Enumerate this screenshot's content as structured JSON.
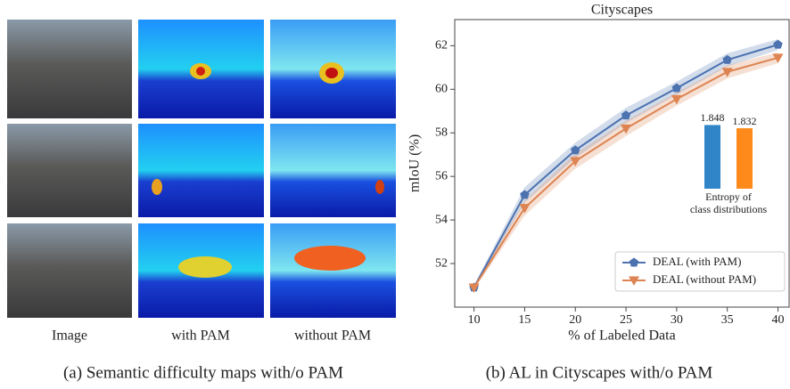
{
  "figure_a": {
    "column_labels": [
      "Image",
      "with PAM",
      "without PAM"
    ],
    "caption": "(a) Semantic difficulty maps with/o PAM"
  },
  "figure_b": {
    "caption": "(b) AL in Cityscapes with/o PAM"
  },
  "chart_data": [
    {
      "type": "line",
      "title": "Cityscapes",
      "x_label": "% of Labeled Data",
      "y_label": "mIoU (%)",
      "x": [
        10,
        15,
        20,
        25,
        30,
        35,
        40
      ],
      "series": [
        {
          "name": "DEAL (with PAM)",
          "color": "#4c72b0",
          "marker": "pentagon",
          "values": [
            50.9,
            55.15,
            57.2,
            58.8,
            60.05,
            61.35,
            62.05
          ],
          "band": [
            0.1,
            0.35,
            0.35,
            0.35,
            0.3,
            0.3,
            0.25
          ]
        },
        {
          "name": "DEAL (without PAM)",
          "color": "#dd8452",
          "marker": "triangle-down",
          "values": [
            50.9,
            54.55,
            56.7,
            58.2,
            59.55,
            60.8,
            61.45
          ],
          "band": [
            0.1,
            0.35,
            0.35,
            0.35,
            0.3,
            0.3,
            0.25
          ]
        }
      ],
      "xlim": [
        8.1,
        41.1
      ],
      "xticks": [
        10,
        15,
        20,
        25,
        30,
        35,
        40
      ],
      "ylim": [
        50,
        63.2
      ],
      "yticks": [
        52,
        54,
        56,
        58,
        60,
        62
      ],
      "legend": "lower right"
    },
    {
      "type": "bar",
      "x_label": "Entropy of class distributions",
      "values": [
        1.848,
        1.832
      ],
      "colors": [
        "#2f85c8",
        "#ff8a1c"
      ],
      "ylim": [
        1.53,
        1.85
      ]
    }
  ]
}
